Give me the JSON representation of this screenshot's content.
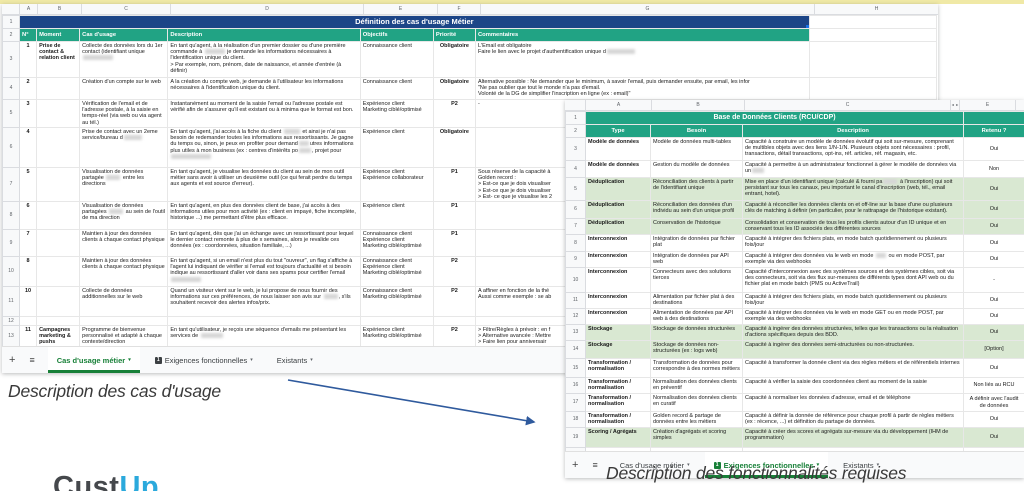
{
  "colors": {
    "header_green": "#21a384",
    "title_blue": "#1c4587",
    "row_green": "#d9e8d2",
    "active_tab_green": "#188038",
    "arrow_blue": "#2f5a9d",
    "logo_blue": "#2ba9dc",
    "top_strip_yellow": "#f0e9a6"
  },
  "icons": {
    "add_tab": "+",
    "all_sheets": "≡",
    "caret": "▾",
    "hidden_cols": "◄ ►"
  },
  "tabs": [
    {
      "label": "Cas d'usage métier"
    },
    {
      "label": "Exigences fonctionnelles",
      "badge": "1"
    },
    {
      "label": "Existants"
    }
  ],
  "captions": {
    "left": "Description des cas d'usage",
    "right": "Description des fonctionnalités requises"
  },
  "logo": {
    "dark": "Cust",
    "blue": "Up"
  },
  "left_sheet": {
    "col_letters": [
      "A",
      "B",
      "C",
      "D",
      "E",
      "F",
      "G",
      "H"
    ],
    "row1_num": "1",
    "row2_num": "2",
    "title": "Définition des cas d'usage Métier",
    "headers": {
      "no": "N°",
      "moment": "Moment",
      "cas": "Cas d'usage",
      "desc": "Description",
      "obj": "Objectifs",
      "prio": "Priorité",
      "comm": "Commentaires"
    },
    "rows": [
      {
        "n": "3",
        "no": "1",
        "moment": "Prise de contact & relation client",
        "cas": "Collecte des données lors du 1er contact (identifiant unique\n[[r30]]",
        "desc": "En tant qu'agent, à la réalisation d'un premier dossier ou d'une première commande à [[r20]] je demande les informations nécessaires à l'identification unique du client.\n> Par exemple, nom, prénom, date de naissance, et année d'entrée (à définir)",
        "obj": "Connaissance client",
        "prio": "Obligatoire",
        "comm": "L'Email est obligatoire\nFaire le lien avec le projet d'authentification unique d[[r28]]"
      },
      {
        "n": "4",
        "no": "2",
        "moment": "",
        "cas": "Création d'un compte sur le web",
        "desc": "A la création du compte web, je demande à l'utilisateur les informations nécessaires à l'identification unique du client.",
        "obj": "Connaissance client",
        "prio": "Obligatoire",
        "comm": "Alternative possible : Ne demander que le minimum, à savoir l'email, puis demander ensuite, par email, les infor\n\"Ne pas oublier que tout le monde n'a pas d'email.\nVolonté de la DG de simplifier l'inscription en ligne (ex : email)\""
      },
      {
        "n": "5",
        "no": "3",
        "moment": "",
        "cas": "Vérification de l'email et de l'adresse postale, à la saisie en temps-réel (via web ou via agent au tél.)",
        "desc": "Instantanément au moment de la saisie l'email ou l'adresse postale est vérifié afin de s'assurer qu'il est existant ou à minima que le format est bon.",
        "obj": "Expérience client\nMarketing ciblé/optimisé",
        "prio": "P2",
        "comm": "-"
      },
      {
        "n": "6",
        "no": "4",
        "moment": "",
        "cas": "Prise de contact avec un 2eme service/bureau d[[r18]]",
        "desc": "En tant qu'agent, j'ai accès à la fiche du client [[r16]] et ainsi je n'ai pas besoin de redemander toutes les informations aux ressortissants. Je gagne du temps ou, sinon, je peux en profiter pour demand[[r10]]utres informations plus utiles à mon business (ex : centres d'intérêts po[[r12]], projet pour\n[[r40]]",
        "obj": "Expérience client",
        "prio": "Obligatoire",
        "comm": ""
      },
      {
        "n": "7",
        "no": "5",
        "moment": "",
        "cas": "Visualisation de données partagée [[r14]] entre les directions",
        "desc": "En tant qu'agent, je visualise les données du client au sein de mon outil métier sans avoir à utiliser un deuxième outil (ce qui ferait perdre du temps aux agents et est source d'erreur).",
        "obj": "Expérience client\nExpérience collaborateur",
        "prio": "P1",
        "comm": "Sous réserve de la capacité à\nGolden record :\n> Est-ce que je dois visualiser\n> Est-ce que je dois visualiser\n> Est- ce que je visualise les 2"
      },
      {
        "n": "8",
        "no": "6",
        "moment": "",
        "cas": "Visualisation de données partagées [[r14]] au sein de l'outil de ma direction",
        "desc": "En tant qu'agent, en plus des données client de base, j'ai accès à des informations utiles pour mon activité (ex : client en impayé, fiche incomplète, historique ...) me permettant d'être plus efficace.",
        "obj": "Expérience client",
        "prio": "P1",
        "comm": ""
      },
      {
        "n": "9",
        "no": "7",
        "moment": "",
        "cas": "Maintien à jour des données clients à chaque contact physique",
        "desc": "En tant qu'agent, dès que j'ai un échange avec un ressortissant pour lequel le dernier contact remonte à plus de x semaines, alors je revalide ces données (ex : coordonnées, situation familiale, ...)",
        "obj": "Connaissance client\nExpérience client\nMarketing ciblé/optimisé",
        "prio": "P1",
        "comm": ""
      },
      {
        "n": "10",
        "no": "8",
        "moment": "",
        "cas": "Maintien à jour des données clients à chaque contact physique",
        "desc": "En tant qu'agent, si un email n'est plus du tout \"ouvreur\", un flag s'affiche à l'agent lui indiquant de vérifier si l'email est toujours d'actualité et si besoin indique au ressortissant d'aller voir dans ses spams pour certifier l'email\n[[r30]]",
        "obj": "Connaissance client\nExpérience client\nMarketing ciblé/optimisé",
        "prio": "P2",
        "comm": ""
      },
      {
        "n": "11",
        "no": "10",
        "moment": "",
        "cas": "Collecte de données additionnelles sur le web",
        "desc": "Quand un visiteur vient sur le web, je lui propose de nous fournir des informations sur ces préférences, de nous laisser son avis sur [[r14]], s'ils souhaitent recevoir des alertes infos/prix.",
        "obj": "Connaissance client\nMarketing ciblé/optimisé",
        "prio": "P2",
        "comm": "A affiner en fonction de la thé\nAussi comme exemple : se ab"
      },
      {
        "n": "12",
        "no": "",
        "moment": "",
        "cas": "",
        "desc": "",
        "obj": "",
        "prio": "",
        "comm": ""
      },
      {
        "n": "13",
        "no": "11",
        "moment": "Campagnes marketing & pushs",
        "cas": "Programme de bienvenue personnalisé et adapté à chaque contexte/direction",
        "desc": "En tant qu'utilisateur, je reçois une séquence d'emails me présentant les services de [[r22]]",
        "obj": "Expérience client\nMarketing ciblé/optimisé",
        "prio": "P2",
        "comm": "> Filtre/Règles à prévoir : en f\n> Alternative avancée : Mettre\n> Faire lien pour anniversair"
      }
    ]
  },
  "right_sheet": {
    "col_letters": [
      "A",
      "B",
      "C",
      "E"
    ],
    "row1_num": "1",
    "row2_num": "2",
    "title": "Base de Données Clients (RCU/CDP)",
    "headers": {
      "type": "Type",
      "besoin": "Besoin",
      "desc": "Description",
      "retenu": "Retenu ?"
    },
    "rows": [
      {
        "n": "3",
        "type": "Modèle de données",
        "besoin": "Modèle de données multi-tables",
        "desc": "Capacité à construire un modèle de données évolutif qui soit sur-mesure, comprenant de multibles objets avec des liens 1/N-1/N. Plusieurs objets sont nécessaires : profil, transactions, détail transactions, opt-ins, réf. articles, réf. magasin, etc.",
        "retenu": "Oui"
      },
      {
        "n": "4",
        "type": "Modèle de données",
        "besoin": "Gestion du modèle de données",
        "desc": "Capacité à permettre à un administrateur fonctionnel à gérer le modèle de données via un[[r12]]",
        "retenu": "Non"
      },
      {
        "n": "5",
        "type": "Déduplication",
        "besoin": "Réconciliation des clients à partir de l'identifiant unique",
        "desc": "Mise en place d'un identifiant unique (calculé & fourni pa[[r14]] à l'inscription) qui soit persistant sur tous les canaux, peu important le canal d'inscription (web, tél., email entrant, hotel).",
        "retenu": "Oui"
      },
      {
        "n": "6",
        "type": "Déduplication",
        "besoin": "Réconciliation des données d'un individu au sein d'un unique profil",
        "desc": "Capacité à réconcilier les données clients on et off-line sur la base d'une ou plusieurs clés de matching à définir (en particulier, pour le rattrapage de l'historique existant).",
        "retenu": "Oui"
      },
      {
        "n": "7",
        "type": "Déduplication",
        "besoin": "Conservation de l'historique",
        "desc": "Consolidation et conservation de tous les profils clients autour d'un ID unique et en conservant tous les ID associés des différentes sources",
        "retenu": "Oui"
      },
      {
        "n": "8",
        "type": "Interconnexion",
        "besoin": "Intégration de données par fichier plat",
        "desc": "Capacité à intégrer des fichiers plats, en mode batch quotidiennement ou plusieurs fois/jour",
        "retenu": "Oui"
      },
      {
        "n": "9",
        "type": "Interconnexion",
        "besoin": "Intégration de données par API web",
        "desc": "Capacité à intégrer des données via le web en mode [[r10]] ou en mode POST, par exemple via des webhooks",
        "retenu": "Oui"
      },
      {
        "n": "10",
        "type": "Interconnexion",
        "besoin": "Connecteurs avec des solutions tierces",
        "desc": "Capacité d'interconnexion avec des systèmes sources et des systèmes cibles, soit via des connecteurs, soit via des flux sur-mesures de différents types dont API web ou du fichier plat en mode batch (PMS ou ActiveTrail)",
        "retenu": "-"
      },
      {
        "n": "11",
        "type": "Interconnexion",
        "besoin": "Alimentation par fichier plat à des destinations",
        "desc": "Capacité à intégrer des fichiers plats, en mode batch quotidiennement ou plusieurs fois/jour",
        "retenu": "Oui"
      },
      {
        "n": "12",
        "type": "Interconnexion",
        "besoin": "Alimentation de données par API web à des destinations",
        "desc": "Capacité à intégrer des données via le web en mode GET ou en mode POST, par exemple via des webhooks",
        "retenu": "Oui"
      },
      {
        "n": "13",
        "type": "Stockage",
        "besoin": "Stockage de données structurées",
        "desc": "Capacité à ingérer des données structurées, telles que les transactions ou la réalisation d'actions spécifiques depuis des BDD.",
        "retenu": "Oui"
      },
      {
        "n": "14",
        "type": "Stockage",
        "besoin": "Stockage de données non-structurées (ex : logs web)",
        "desc": "Capacité à ingérer des données semi-structurées ou non-structurées.",
        "retenu": "[Option]"
      },
      {
        "n": "15",
        "type": "Transformation / normalisation",
        "besoin": "Transformation de données pour correspondre à des normes métiers",
        "desc": "Capacité à transformer la donnée client via des règles métiers et de référentiels internes",
        "retenu": "Oui"
      },
      {
        "n": "16",
        "type": "Transformation / normalisation",
        "besoin": "Normalisation des données clients en préventif",
        "desc": "Capacité à vérifier la saisie des coordonnées client au moment de la saisie",
        "retenu": "Non liés au RCU"
      },
      {
        "n": "17",
        "type": "Transformation / normalisation",
        "besoin": "Normalisation des données clients en curatif",
        "desc": "Capacité à normaliser les données d'adresse, email et de téléphone",
        "retenu": "A définir avec l'audit de données"
      },
      {
        "n": "18",
        "type": "Transformation / normalisation",
        "besoin": "Golden record & partage de données entre les métiers",
        "desc": "Capacité à définir la donnée de référence pour chaque profil à partir de règles métiers (ex : récence, ...) et définition du partage de données.",
        "retenu": "Oui"
      },
      {
        "n": "19",
        "type": "Scoring / Agrégats",
        "besoin": "Création d'agrégats et scoring simples",
        "desc": "Capacité à créer des scores et agrégats sur-mesure via du développement (IHM de programmation)",
        "retenu": "Oui"
      }
    ]
  }
}
